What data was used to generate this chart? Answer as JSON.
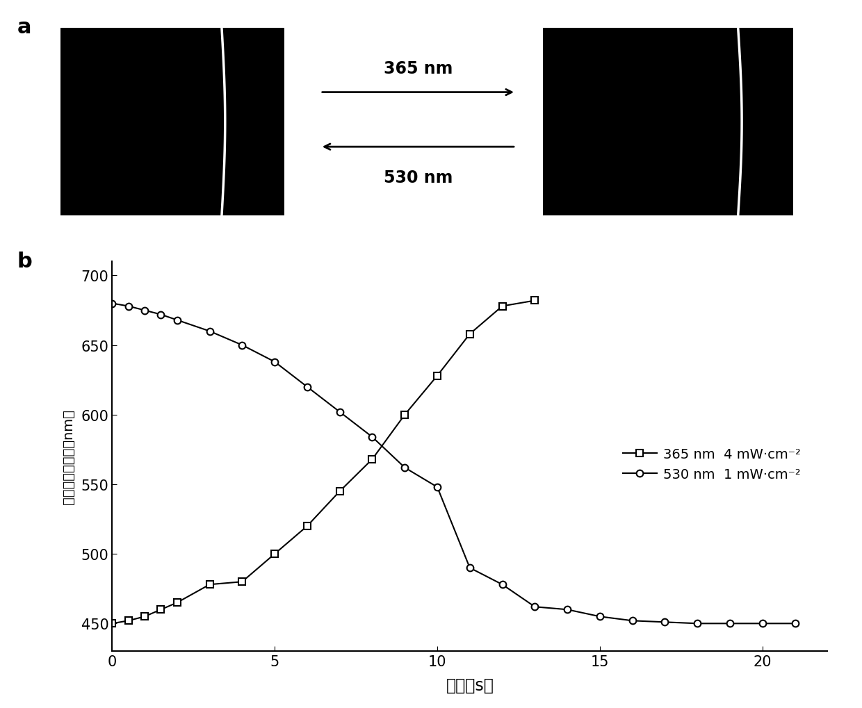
{
  "series_365_x": [
    0,
    0.5,
    1,
    1.5,
    2,
    3,
    4,
    5,
    6,
    7,
    8,
    9,
    10,
    11,
    12,
    13
  ],
  "series_365_y": [
    450,
    452,
    455,
    460,
    465,
    478,
    480,
    500,
    520,
    545,
    568,
    600,
    628,
    658,
    678,
    682
  ],
  "series_530_x": [
    0,
    0.5,
    1,
    1.5,
    2,
    3,
    4,
    5,
    6,
    7,
    8,
    9,
    10,
    11,
    12,
    13,
    14,
    15,
    16,
    17,
    18,
    19,
    20,
    21
  ],
  "series_530_y": [
    680,
    678,
    675,
    672,
    668,
    660,
    650,
    638,
    620,
    602,
    584,
    562,
    548,
    490,
    478,
    462,
    460,
    455,
    452,
    451,
    450,
    450,
    450,
    450
  ],
  "xlabel": "时间（s）",
  "ylabel": "反射端中心波长（nm）",
  "xlim": [
    0,
    22
  ],
  "ylim": [
    430,
    710
  ],
  "xticks": [
    0,
    5,
    10,
    15,
    20
  ],
  "yticks": [
    450,
    500,
    550,
    600,
    650,
    700
  ],
  "legend_365": "365 nm  4 mW·cm⁻²",
  "legend_530": "530 nm  1 mW·cm⁻²",
  "panel_a_label": "a",
  "panel_b_label": "b",
  "arrow_label_365": "365 nm",
  "arrow_label_530": "530 nm",
  "line_color": "#000000",
  "bg_color": "#ffffff",
  "marker_size": 7,
  "linewidth": 1.5
}
